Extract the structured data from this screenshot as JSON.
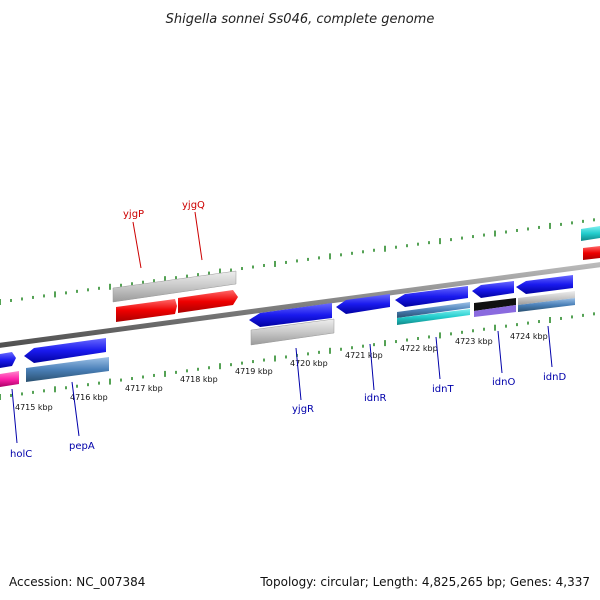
{
  "title": "Shigella sonnei Ss046, complete genome",
  "footer": {
    "accession": "Accession: NC_007384",
    "summary": "Topology: circular; Length: 4,825,265 bp; Genes: 4,337"
  },
  "kbp_labels": [
    "4715 kbp",
    "4716 kbp",
    "4717 kbp",
    "4718 kbp",
    "4719 kbp",
    "4720 kbp",
    "4721 kbp",
    "4722 kbp",
    "4723 kbp",
    "4724 kbp"
  ],
  "genes": [
    {
      "name": "yjgP",
      "color": "#cc0000"
    },
    {
      "name": "yjgQ",
      "color": "#cc0000"
    },
    {
      "name": "holC",
      "color": "#0000aa"
    },
    {
      "name": "pepA",
      "color": "#0000aa"
    },
    {
      "name": "yjgR",
      "color": "#0000aa"
    },
    {
      "name": "idnR",
      "color": "#0000aa"
    },
    {
      "name": "idnT",
      "color": "#0000aa"
    },
    {
      "name": "idnO",
      "color": "#0000aa"
    },
    {
      "name": "idnD",
      "color": "#0000aa"
    }
  ],
  "colors": {
    "forward_gene": "#ff1a1a",
    "reverse_gene": "#1a1aff",
    "backbone": "#808080",
    "ticks": "#2a8a2a",
    "cds_grey": "#c8c8c8",
    "cyan": "#22cccc",
    "steel": "#4a80b8",
    "magenta": "#ff22aa"
  }
}
